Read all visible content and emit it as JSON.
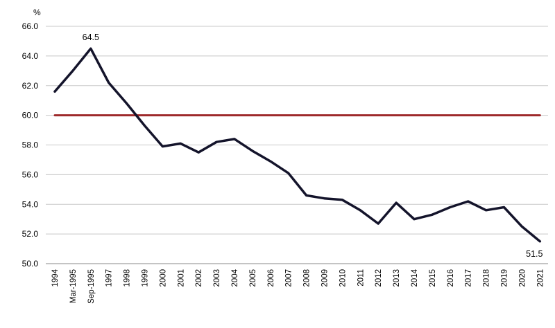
{
  "chart_data": {
    "type": "line",
    "title": "",
    "xlabel": "",
    "ylabel": "%",
    "ylim": [
      50,
      66
    ],
    "yticks": [
      "50.0",
      "52.0",
      "54.0",
      "56.0",
      "58.0",
      "60.0",
      "62.0",
      "64.0",
      "66.0"
    ],
    "grid": "horizontal",
    "legend": "none",
    "categories": [
      "1994",
      "Mar-1995",
      "Sep-1995",
      "1997",
      "1998",
      "1999",
      "2000",
      "2001",
      "2002",
      "2003",
      "2004",
      "2005",
      "2006",
      "2007",
      "2008",
      "2009",
      "2010",
      "2011",
      "2012",
      "2013",
      "2014",
      "2015",
      "2016",
      "2017",
      "2018",
      "2019",
      "2020",
      "2021"
    ],
    "series": [
      {
        "name": "",
        "color": "#14142b",
        "values": [
          61.6,
          63.0,
          64.5,
          62.2,
          60.8,
          59.3,
          57.9,
          58.1,
          57.5,
          58.2,
          58.4,
          57.6,
          56.9,
          56.1,
          54.6,
          54.4,
          54.3,
          53.6,
          52.7,
          54.1,
          53.0,
          53.3,
          53.8,
          54.2,
          53.6,
          53.8,
          52.5,
          51.5
        ]
      },
      {
        "name": "",
        "color": "#9e2a2b",
        "values": [
          60.0,
          60.0,
          60.0,
          60.0,
          60.0,
          60.0,
          60.0,
          60.0,
          60.0,
          60.0,
          60.0,
          60.0,
          60.0,
          60.0,
          60.0,
          60.0,
          60.0,
          60.0,
          60.0,
          60.0,
          60.0,
          60.0,
          60.0,
          60.0,
          60.0,
          60.0,
          60.0,
          60.0
        ]
      }
    ],
    "annotations": [
      {
        "label": "64.5",
        "category": "Sep-1995",
        "value": 64.5,
        "placement": "above"
      },
      {
        "label": "51.5",
        "category": "2021",
        "value": 51.5,
        "placement": "below"
      }
    ]
  }
}
